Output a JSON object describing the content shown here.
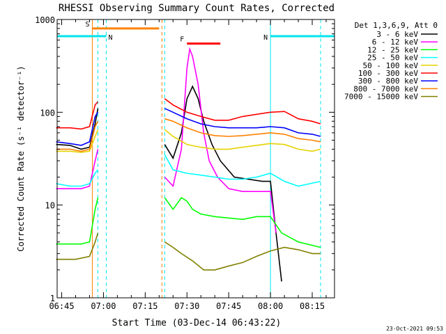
{
  "chart_data": {
    "type": "line",
    "title": "RHESSI Observing Summary Count Rates, Corrected",
    "xlabel": "Start Time (03-Dec-14 06:43:22)",
    "ylabel": "Corrected Count Rate (s⁻¹ detector⁻¹)",
    "y_scale": "log",
    "ylim": [
      1,
      1000
    ],
    "xlim": [
      "06:43:22",
      "08:23:00"
    ],
    "x_ticks": [
      "06:45",
      "07:00",
      "07:15",
      "07:30",
      "07:45",
      "08:00",
      "08:15"
    ],
    "y_ticks": [
      "1",
      "10",
      "100",
      "1000"
    ],
    "legend_header": "Det 1,3,6,9, Att 0",
    "legend_position": "right",
    "timestamp": "23-Oct-2021 09:53",
    "grid": false,
    "markers": [
      {
        "label": "S",
        "color": "#ff8000",
        "start": "06:56",
        "end": "07:20",
        "value": 800
      },
      {
        "label": "N",
        "color": "#00e5ee",
        "start": "06:43",
        "end": "07:01",
        "value": 660
      },
      {
        "label": "N",
        "color": "#00e5ee",
        "start": "08:00",
        "end": "08:23",
        "value": 660
      },
      {
        "label": "F",
        "color": "#ff0000",
        "start": "07:30",
        "end": "07:42",
        "value": 550
      }
    ],
    "vlines": [
      {
        "time": "06:56",
        "color": "#ff8000",
        "style": "solid"
      },
      {
        "time": "06:58",
        "color": "#00e5ee",
        "style": "dashed"
      },
      {
        "time": "07:01",
        "color": "#00e5ee",
        "style": "dashed"
      },
      {
        "time": "07:21",
        "color": "#ff8000",
        "style": "dashed"
      },
      {
        "time": "07:22",
        "color": "#00e5ee",
        "style": "dashed"
      },
      {
        "time": "08:00",
        "color": "#00e5ee",
        "style": "solid"
      },
      {
        "time": "08:18",
        "color": "#00e5ee",
        "style": "dashed"
      }
    ],
    "series": [
      {
        "name": "3 - 6 keV",
        "color": "#000000",
        "segments": [
          [
            [
              "06:43",
              45
            ],
            [
              "06:48",
              44
            ],
            [
              "06:52",
              40
            ],
            [
              "06:55",
              42
            ],
            [
              "06:57",
              75
            ],
            [
              "06:58",
              110
            ]
          ],
          [
            [
              "07:22",
              45
            ],
            [
              "07:25",
              32
            ],
            [
              "07:28",
              60
            ],
            [
              "07:30",
              140
            ],
            [
              "07:32",
              190
            ],
            [
              "07:34",
              140
            ],
            [
              "07:36",
              80
            ],
            [
              "07:39",
              45
            ],
            [
              "07:42",
              30
            ],
            [
              "07:47",
              20
            ],
            [
              "07:52",
              19
            ],
            [
              "07:57",
              18
            ],
            [
              "08:00",
              18
            ],
            [
              "08:02",
              5
            ],
            [
              "08:04",
              1.5
            ]
          ]
        ]
      },
      {
        "name": "6 - 12 keV",
        "color": "#ff00ff",
        "segments": [
          [
            [
              "06:43",
              15
            ],
            [
              "06:52",
              15
            ],
            [
              "06:55",
              16
            ],
            [
              "06:57",
              30
            ],
            [
              "06:58",
              40
            ]
          ],
          [
            [
              "07:22",
              20
            ],
            [
              "07:25",
              16
            ],
            [
              "07:28",
              40
            ],
            [
              "07:30",
              300
            ],
            [
              "07:31",
              480
            ],
            [
              "07:32",
              400
            ],
            [
              "07:34",
              200
            ],
            [
              "07:36",
              60
            ],
            [
              "07:38",
              30
            ],
            [
              "07:41",
              20
            ],
            [
              "07:45",
              15
            ],
            [
              "07:50",
              14
            ],
            [
              "07:55",
              14
            ],
            [
              "08:00",
              14
            ],
            [
              "08:02",
              5
            ]
          ]
        ]
      },
      {
        "name": "12 - 25 keV",
        "color": "#00ff00",
        "segments": [
          [
            [
              "06:43",
              3.8
            ],
            [
              "06:52",
              3.8
            ],
            [
              "06:55",
              4
            ],
            [
              "06:57",
              9
            ],
            [
              "06:58",
              12
            ]
          ],
          [
            [
              "07:22",
              12
            ],
            [
              "07:25",
              9
            ],
            [
              "07:28",
              12
            ],
            [
              "07:30",
              11
            ],
            [
              "07:32",
              9
            ],
            [
              "07:35",
              8
            ],
            [
              "07:40",
              7.5
            ],
            [
              "07:50",
              7
            ],
            [
              "07:55",
              7.5
            ],
            [
              "08:00",
              7.5
            ],
            [
              "08:04",
              5
            ],
            [
              "08:10",
              4
            ],
            [
              "08:18",
              3.5
            ]
          ]
        ]
      },
      {
        "name": "25 - 50 keV",
        "color": "#00ffff",
        "segments": [
          [
            [
              "06:43",
              17
            ],
            [
              "06:48",
              16
            ],
            [
              "06:52",
              16
            ],
            [
              "06:55",
              17
            ],
            [
              "06:57",
              22
            ],
            [
              "06:58",
              24
            ]
          ],
          [
            [
              "07:22",
              35
            ],
            [
              "07:25",
              24
            ],
            [
              "07:30",
              22
            ],
            [
              "07:35",
              21
            ],
            [
              "07:40",
              20
            ],
            [
              "07:45",
              19
            ],
            [
              "07:50",
              19
            ],
            [
              "07:55",
              20
            ],
            [
              "08:00",
              22
            ],
            [
              "08:05",
              18
            ],
            [
              "08:10",
              16
            ],
            [
              "08:18",
              18
            ]
          ]
        ]
      },
      {
        "name": "50 - 100 keV",
        "color": "#e6d200",
        "segments": [
          [
            [
              "06:43",
              38
            ],
            [
              "06:48",
              38
            ],
            [
              "06:52",
              37
            ],
            [
              "06:55",
              38
            ],
            [
              "06:57",
              55
            ],
            [
              "06:58",
              65
            ]
          ],
          [
            [
              "07:22",
              65
            ],
            [
              "07:25",
              55
            ],
            [
              "07:30",
              45
            ],
            [
              "07:35",
              42
            ],
            [
              "07:40",
              40
            ],
            [
              "07:45",
              40
            ],
            [
              "07:50",
              42
            ],
            [
              "07:55",
              44
            ],
            [
              "08:00",
              46
            ],
            [
              "08:05",
              45
            ],
            [
              "08:10",
              40
            ],
            [
              "08:15",
              38
            ],
            [
              "08:18",
              40
            ]
          ]
        ]
      },
      {
        "name": "100 - 300 keV",
        "color": "#ff0000",
        "segments": [
          [
            [
              "06:43",
              68
            ],
            [
              "06:48",
              68
            ],
            [
              "06:52",
              66
            ],
            [
              "06:55",
              70
            ],
            [
              "06:57",
              120
            ],
            [
              "06:58",
              130
            ]
          ],
          [
            [
              "07:22",
              140
            ],
            [
              "07:25",
              120
            ],
            [
              "07:30",
              100
            ],
            [
              "07:35",
              90
            ],
            [
              "07:40",
              82
            ],
            [
              "07:45",
              82
            ],
            [
              "07:50",
              90
            ],
            [
              "07:55",
              95
            ],
            [
              "08:00",
              100
            ],
            [
              "08:05",
              102
            ],
            [
              "08:10",
              85
            ],
            [
              "08:15",
              80
            ],
            [
              "08:18",
              75
            ]
          ]
        ]
      },
      {
        "name": "300 - 800 keV",
        "color": "#0000ff",
        "segments": [
          [
            [
              "06:43",
              48
            ],
            [
              "06:48",
              46
            ],
            [
              "06:52",
              44
            ],
            [
              "06:55",
              48
            ],
            [
              "06:57",
              90
            ],
            [
              "06:58",
              100
            ]
          ],
          [
            [
              "07:22",
              110
            ],
            [
              "07:25",
              100
            ],
            [
              "07:30",
              85
            ],
            [
              "07:35",
              75
            ],
            [
              "07:40",
              70
            ],
            [
              "07:45",
              68
            ],
            [
              "07:50",
              68
            ],
            [
              "07:55",
              68
            ],
            [
              "08:00",
              70
            ],
            [
              "08:05",
              68
            ],
            [
              "08:10",
              60
            ],
            [
              "08:15",
              58
            ],
            [
              "08:18",
              55
            ]
          ]
        ]
      },
      {
        "name": "800 - 7000 keV",
        "color": "#ff8000",
        "segments": [
          [
            [
              "06:43",
              40
            ],
            [
              "06:48",
              40
            ],
            [
              "06:52",
              38
            ],
            [
              "06:55",
              40
            ],
            [
              "06:57",
              70
            ],
            [
              "06:58",
              80
            ]
          ],
          [
            [
              "07:22",
              85
            ],
            [
              "07:25",
              80
            ],
            [
              "07:30",
              68
            ],
            [
              "07:35",
              60
            ],
            [
              "07:40",
              56
            ],
            [
              "07:45",
              55
            ],
            [
              "07:50",
              56
            ],
            [
              "07:55",
              58
            ],
            [
              "08:00",
              60
            ],
            [
              "08:05",
              58
            ],
            [
              "08:10",
              52
            ],
            [
              "08:15",
              50
            ],
            [
              "08:18",
              48
            ]
          ]
        ]
      },
      {
        "name": "7000 - 15000 keV",
        "color": "#808000",
        "segments": [
          [
            [
              "06:43",
              2.6
            ],
            [
              "06:50",
              2.6
            ],
            [
              "06:55",
              2.8
            ],
            [
              "06:57",
              4
            ],
            [
              "06:58",
              5
            ]
          ],
          [
            [
              "07:22",
              4
            ],
            [
              "07:25",
              3.5
            ],
            [
              "07:28",
              3
            ],
            [
              "07:32",
              2.5
            ],
            [
              "07:36",
              2
            ],
            [
              "07:40",
              2
            ],
            [
              "07:45",
              2.2
            ],
            [
              "07:50",
              2.4
            ],
            [
              "07:55",
              2.8
            ],
            [
              "08:00",
              3.2
            ],
            [
              "08:05",
              3.5
            ],
            [
              "08:10",
              3.3
            ],
            [
              "08:15",
              3
            ],
            [
              "08:18",
              3
            ]
          ]
        ]
      }
    ]
  }
}
